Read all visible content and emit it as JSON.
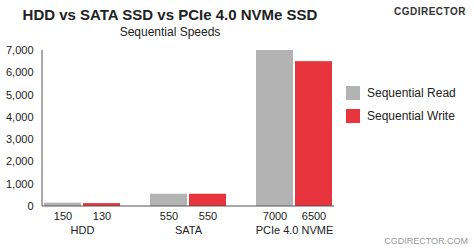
{
  "chart_data": {
    "type": "bar",
    "title": "HDD vs SATA SSD vs PCIe 4.0 NVMe SSD",
    "subtitle": "Sequential Speeds",
    "categories": [
      "HDD",
      "SATA",
      "PCIe 4.0 NVME"
    ],
    "series": [
      {
        "name": "Sequential Read",
        "color": "#b3b3b3",
        "values": [
          150,
          550,
          7000
        ]
      },
      {
        "name": "Sequential Write",
        "color": "#e8343d",
        "values": [
          130,
          550,
          6500
        ]
      }
    ],
    "ylim": [
      0,
      7000
    ],
    "yticks": [
      0,
      1000,
      2000,
      3000,
      4000,
      5000,
      6000,
      7000
    ],
    "grid": false,
    "legend": "right",
    "data_labels": true,
    "annotations": [
      "CGDIRECTOR",
      "CGDIRECTOR.COM"
    ]
  }
}
